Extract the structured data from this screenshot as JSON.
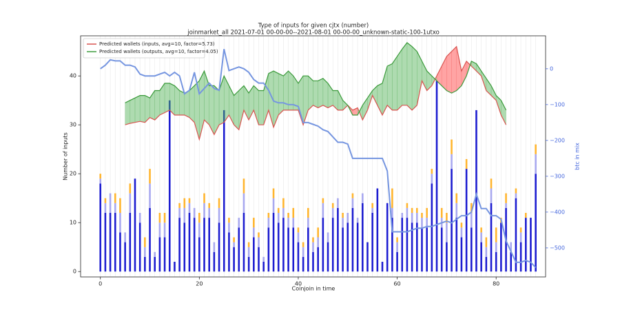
{
  "chart_data": {
    "type": "bar",
    "title": "Type of inputs for given cjtx (number)",
    "subtitle": "joinmarket_all 2021-07-01 00-00-00--2021-08-01 00-00-00_unknown-static-100-1utxo",
    "xlabel": "Coinjoin in time",
    "ylabel": "Number of inputs",
    "y2label": "btc in mix",
    "x": [
      0,
      1,
      2,
      3,
      4,
      5,
      6,
      7,
      8,
      9,
      10,
      11,
      12,
      13,
      14,
      15,
      16,
      17,
      18,
      19,
      20,
      21,
      22,
      23,
      24,
      25,
      26,
      27,
      28,
      29,
      30,
      31,
      32,
      33,
      34,
      35,
      36,
      37,
      38,
      39,
      40,
      41,
      42,
      43,
      44,
      45,
      46,
      47,
      48,
      49,
      50,
      51,
      52,
      53,
      54,
      55,
      56,
      57,
      58,
      59,
      60,
      61,
      62,
      63,
      64,
      65,
      66,
      67,
      68,
      69,
      70,
      71,
      72,
      73,
      74,
      75,
      76,
      77,
      78,
      79,
      80,
      81,
      82,
      83,
      84,
      85,
      86,
      87,
      88
    ],
    "xlim": [
      -4,
      90
    ],
    "xticks": [
      0,
      20,
      40,
      60,
      80
    ],
    "ylim": [
      -1.1,
      48.2
    ],
    "yticks": [
      0,
      10,
      20,
      30,
      40
    ],
    "y2lim": [
      -581,
      92
    ],
    "y2ticks": [
      {
        "value": -500,
        "label": "−500"
      },
      {
        "value": -400,
        "label": "−400"
      },
      {
        "value": -300,
        "label": "−300"
      },
      {
        "value": -200,
        "label": "−200"
      },
      {
        "value": -100,
        "label": "−100"
      },
      0
    ],
    "legend": "upper left",
    "series": [
      {
        "type": "bar",
        "color": "#1c1cd0",
        "values": [
          18,
          12,
          12,
          12,
          8,
          6,
          12,
          19,
          10,
          3,
          13,
          3,
          7,
          7,
          35,
          2,
          11,
          10,
          12,
          11,
          7,
          11,
          11,
          4,
          10,
          33,
          8,
          5,
          9,
          12,
          3,
          7,
          5,
          2,
          9,
          12,
          10,
          11,
          9,
          9,
          6,
          3,
          9,
          4,
          5,
          11,
          6,
          11,
          13,
          9,
          10,
          13,
          10,
          14,
          6,
          12,
          17,
          2,
          14,
          11,
          4,
          11,
          11,
          10,
          10,
          9,
          9,
          18,
          39,
          9,
          6,
          21,
          11,
          7,
          21,
          9,
          33,
          6,
          3,
          14,
          4,
          10,
          13,
          4,
          15,
          6,
          11,
          11,
          20
        ]
      },
      {
        "type": "bar",
        "color": "#a8a8ef",
        "values": [
          1,
          2,
          4,
          2,
          4,
          2,
          4,
          0,
          2,
          2,
          5,
          1,
          3,
          3,
          0,
          0,
          2,
          3,
          2,
          2,
          3,
          3,
          2,
          2,
          3,
          0,
          2,
          1,
          2,
          4,
          2,
          2,
          2,
          1,
          2,
          3,
          2,
          2,
          2,
          2,
          2,
          2,
          2,
          2,
          2,
          3,
          2,
          2,
          2,
          2,
          2,
          2,
          1,
          2,
          0,
          1,
          0,
          0,
          0,
          2,
          2,
          1,
          2,
          2,
          2,
          2,
          2,
          2,
          0,
          2,
          4,
          3,
          3,
          2,
          0,
          3,
          0,
          2,
          2,
          3,
          2,
          0,
          1,
          2,
          1,
          2,
          0,
          0,
          4
        ]
      },
      {
        "type": "bar",
        "color": "#ffb52e",
        "values": [
          1,
          1,
          0,
          2,
          3,
          0,
          2,
          0,
          0,
          2,
          3,
          0,
          2,
          2,
          0,
          0,
          1,
          2,
          1,
          0,
          2,
          2,
          1,
          0,
          2,
          0,
          1,
          1,
          0,
          3,
          1,
          2,
          1,
          0,
          1,
          2,
          1,
          2,
          1,
          2,
          1,
          1,
          2,
          1,
          2,
          1,
          0,
          1,
          0,
          1,
          0,
          1,
          0,
          0,
          0,
          1,
          0,
          0,
          0,
          4,
          1,
          0,
          1,
          1,
          1,
          1,
          2,
          1,
          0,
          2,
          2,
          3,
          2,
          1,
          2,
          2,
          0,
          1,
          2,
          2,
          3,
          1,
          2,
          0,
          1,
          1,
          1,
          0,
          2
        ]
      },
      {
        "type": "line",
        "name": "Predicted wallets (inputs, avg=10, factor=5.73)",
        "color": "#d9534f",
        "values": [
          null,
          null,
          null,
          null,
          null,
          30,
          30.3,
          30.5,
          30.7,
          30.5,
          31.5,
          31,
          32,
          32.5,
          33,
          32,
          32,
          32,
          31.5,
          30.5,
          27,
          31,
          30,
          28,
          30,
          30.5,
          32,
          30,
          29,
          33,
          31,
          33,
          30,
          30,
          33,
          29.5,
          32,
          33,
          33,
          33,
          33,
          30,
          33,
          34,
          33.5,
          34,
          33.5,
          34,
          33,
          33,
          34,
          33,
          33.5,
          31,
          33,
          36,
          34,
          32,
          34,
          33,
          33,
          34,
          34,
          33,
          34,
          39,
          37,
          38,
          40,
          42,
          44,
          45,
          46,
          41,
          43,
          42,
          41,
          40,
          37,
          36,
          35,
          32,
          30,
          null,
          null,
          null,
          null,
          null,
          null
        ]
      },
      {
        "type": "line",
        "name": "Predicted wallets (outputs, avg=10, factor=4.05)",
        "color": "#3a9a3a",
        "values": [
          null,
          null,
          null,
          null,
          null,
          34.5,
          35,
          35.5,
          36,
          36,
          35.5,
          37,
          37,
          38.5,
          38.5,
          38,
          37,
          36.5,
          37,
          38,
          39,
          41,
          38,
          38,
          37,
          40,
          38,
          36,
          37,
          38,
          36.5,
          38,
          37,
          37,
          40.5,
          41,
          40.5,
          40,
          41,
          40,
          38.5,
          40,
          40,
          39,
          39,
          39.5,
          38.5,
          37,
          37,
          35,
          34,
          32,
          32,
          34,
          35.5,
          37,
          38,
          38.5,
          42,
          42.5,
          44,
          45.5,
          46.8,
          46,
          45,
          43,
          41,
          40,
          39,
          38,
          37,
          36.5,
          37,
          38,
          40,
          43,
          42.5,
          41,
          39.5,
          38,
          36,
          35,
          33,
          null,
          null,
          null,
          null,
          null,
          null
        ]
      },
      {
        "type": "line",
        "axis": "y2",
        "color": "#7595e0",
        "values": [
          0,
          10,
          25,
          22,
          22,
          10,
          10,
          5,
          -15,
          -20,
          -20,
          -20,
          -15,
          -10,
          -20,
          -10,
          -20,
          -70,
          -60,
          -10,
          -70,
          -55,
          -40,
          -55,
          -60,
          55,
          -5,
          0,
          5,
          0,
          -10,
          -30,
          -40,
          -40,
          -60,
          -90,
          -95,
          -95,
          -100,
          -100,
          -105,
          -150,
          -150,
          -155,
          -160,
          -170,
          -175,
          -190,
          -205,
          -205,
          -210,
          -250,
          -250,
          -250,
          -250,
          -250,
          -250,
          -250,
          -285,
          -455,
          -455,
          -455,
          -455,
          -450,
          -445,
          -445,
          -440,
          -440,
          -435,
          -430,
          -425,
          -430,
          -420,
          -410,
          -410,
          -400,
          -350,
          -390,
          -390,
          -410,
          -410,
          -420,
          -480,
          -510,
          -540,
          -540,
          -535,
          -540,
          -555
        ]
      }
    ]
  }
}
